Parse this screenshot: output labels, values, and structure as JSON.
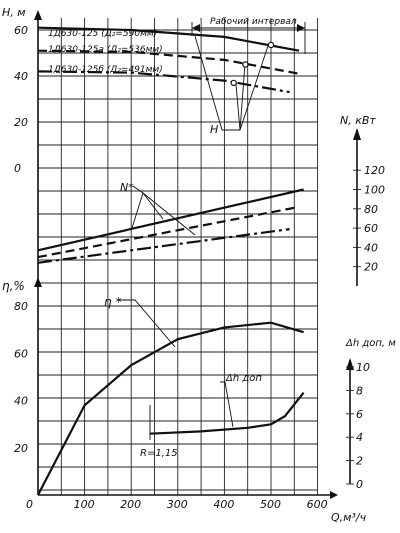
{
  "chart_data": [
    {
      "type": "line",
      "panel": "head",
      "ylabel": "H, м",
      "yticks": [
        "60",
        "40",
        "20",
        "0"
      ],
      "ylim": [
        0,
        60
      ],
      "series": [
        {
          "name": "1Д630-125 (Д₂=590мм)",
          "style": "solid",
          "x": [
            0,
            200,
            400,
            560
          ],
          "y": [
            61,
            60,
            57,
            51
          ]
        },
        {
          "name": "1Д630-125а (Д₂=536мм)",
          "style": "dashed",
          "x": [
            0,
            200,
            400,
            560
          ],
          "y": [
            51,
            50.5,
            47,
            41
          ]
        },
        {
          "name": "1Д630-125б (Д₂=491мм)",
          "style": "dashdot",
          "x": [
            0,
            200,
            400,
            540
          ],
          "y": [
            42,
            41.5,
            38,
            33
          ]
        }
      ],
      "operating_points": [
        {
          "x": 500,
          "y": 53.5
        },
        {
          "x": 445,
          "y": 45
        },
        {
          "x": 420,
          "y": 37
        }
      ],
      "annotations": {
        "curve_label": "H",
        "interval_label": "Рабочий интервал"
      }
    },
    {
      "type": "line",
      "panel": "power",
      "ylabel": "N, кВт",
      "yticks": [
        "120",
        "100",
        "80",
        "60",
        "40",
        "20"
      ],
      "ylim": [
        20,
        120
      ],
      "series": [
        {
          "name": "1Д630-125 (Д₂=590мм)",
          "style": "solid",
          "x": [
            0,
            570
          ],
          "y": [
            37,
            100
          ]
        },
        {
          "name": "1Д630-125а (Д₂=536мм)",
          "style": "dashed",
          "x": [
            0,
            560
          ],
          "y": [
            30,
            82
          ]
        },
        {
          "name": "1Д630-125б (Д₂=491мм)",
          "style": "dashdot",
          "x": [
            0,
            540
          ],
          "y": [
            24,
            59
          ]
        }
      ],
      "annotations": {
        "curve_label": "N*"
      }
    },
    {
      "type": "line",
      "panel": "efficiency_npsh",
      "ylabel": "η,%",
      "yticks": [
        "80",
        "60",
        "40",
        "20"
      ],
      "ylim": [
        0,
        85
      ],
      "y2label": "Δh доп, м",
      "y2ticks": [
        "10",
        "8",
        "6",
        "4",
        "2",
        "0"
      ],
      "y2lim": [
        0,
        10
      ],
      "xlabel": "Q,м³/ч",
      "xticks": [
        "0",
        "100",
        "200",
        "300",
        "400",
        "500",
        "600"
      ],
      "xlim": [
        0,
        650
      ],
      "efficiency": {
        "name": "η*",
        "x": [
          0,
          100,
          200,
          300,
          400,
          500,
          570
        ],
        "y": [
          0,
          38,
          55,
          66,
          71,
          73,
          69
        ]
      },
      "npsh": {
        "name": "Δh доп",
        "x": [
          240,
          350,
          450,
          500,
          530,
          570
        ],
        "y": [
          4.3,
          4.5,
          4.8,
          5.1,
          5.8,
          7.8
        ]
      },
      "annotations": {
        "eta_label": "η *",
        "npsh_label": "Δh доп",
        "r_label": "R=1,15"
      }
    }
  ]
}
